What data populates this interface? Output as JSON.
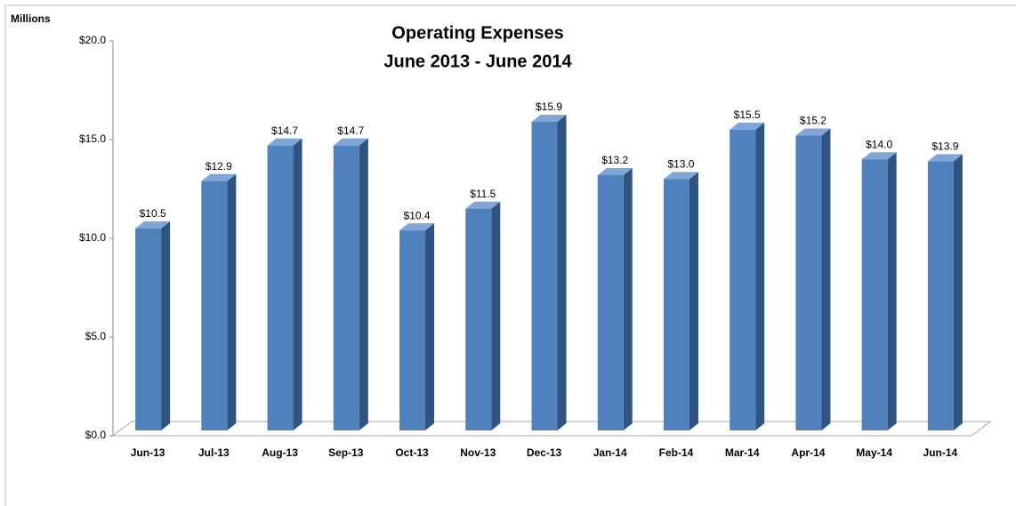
{
  "chart_data": {
    "type": "bar",
    "title": "Operating Expenses",
    "subtitle": "June 2013 - June 2014",
    "ylabel": "Millions",
    "categories": [
      "Jun-13",
      "Jul-13",
      "Aug-13",
      "Sep-13",
      "Oct-13",
      "Nov-13",
      "Dec-13",
      "Jan-14",
      "Feb-14",
      "Mar-14",
      "Apr-14",
      "May-14",
      "Jun-14"
    ],
    "values": [
      10.5,
      12.9,
      14.7,
      14.7,
      10.4,
      11.5,
      15.9,
      13.2,
      13.0,
      15.5,
      15.2,
      14.0,
      13.9
    ],
    "value_labels": [
      "$10.5",
      "$12.9",
      "$14.7",
      "$14.7",
      "$10.4",
      "$11.5",
      "$15.9",
      "$13.2",
      "$13.0",
      "$15.5",
      "$15.2",
      "$14.0",
      "$13.9"
    ],
    "color": "#4f81bd",
    "ylim": [
      0,
      20
    ],
    "yticks": [
      {
        "value": 0,
        "label": "$0.0"
      },
      {
        "value": 5,
        "label": "$5.0"
      },
      {
        "value": 10,
        "label": "$10.0"
      },
      {
        "value": 15,
        "label": "$15.0"
      },
      {
        "value": 20,
        "label": "$20.0"
      }
    ],
    "grid": false
  }
}
